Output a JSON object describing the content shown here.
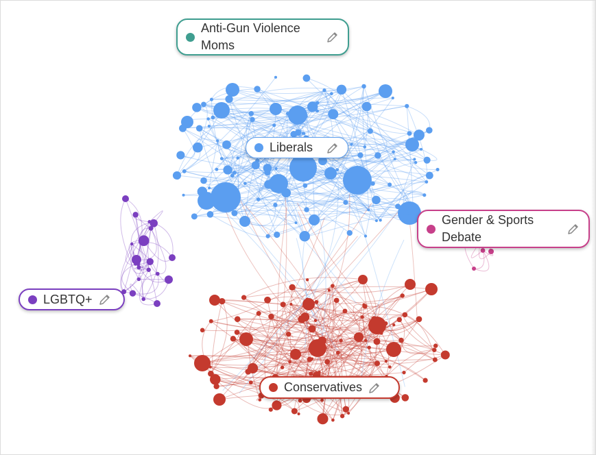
{
  "clusters": [
    {
      "label": "Anti-Gun Violence Moms",
      "color": "#3f9e90"
    },
    {
      "label": "Liberals",
      "color": "#5b9ef0"
    },
    {
      "label": "Gender & Sports Debate",
      "color": "#c7408a"
    },
    {
      "label": "LGBTQ+",
      "color": "#7b3fc0"
    },
    {
      "label": "Conservatives",
      "color": "#c43a2e"
    }
  ]
}
